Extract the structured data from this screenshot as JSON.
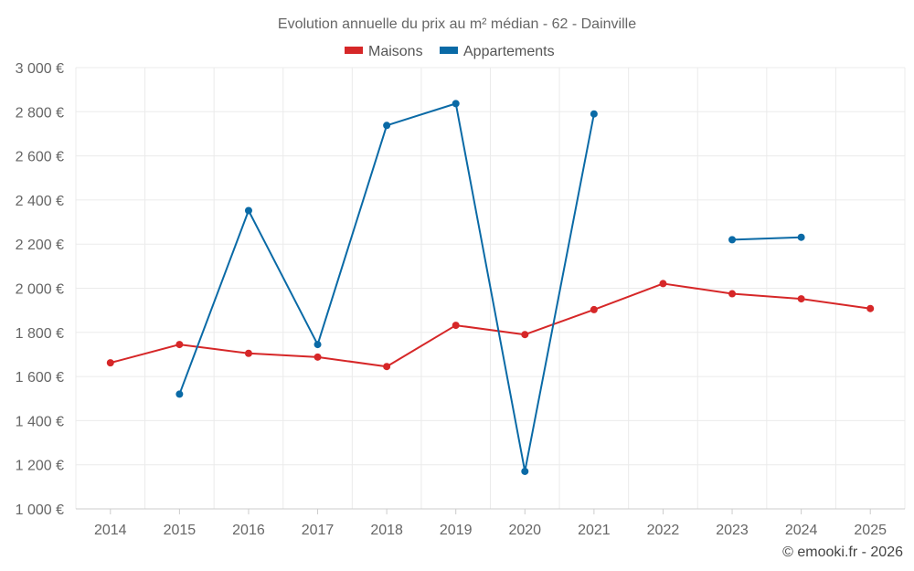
{
  "chart_data": {
    "type": "line",
    "title": "Evolution annuelle du prix au m² médian - 62 - Dainville",
    "categories": [
      "2014",
      "2015",
      "2016",
      "2017",
      "2018",
      "2019",
      "2020",
      "2021",
      "2022",
      "2023",
      "2024",
      "2025"
    ],
    "series": [
      {
        "name": "Maisons",
        "color": "#d62728",
        "values": [
          1662,
          1745,
          1705,
          1688,
          1645,
          1832,
          1790,
          1903,
          2021,
          1975,
          1952,
          1908
        ]
      },
      {
        "name": "Appartements",
        "color": "#0a6aa6",
        "values": [
          null,
          1520,
          2352,
          1745,
          2738,
          2837,
          1170,
          2790,
          null,
          2220,
          2231,
          null
        ]
      }
    ],
    "ylim": [
      1000,
      3000
    ],
    "yticks": [
      {
        "value": 1000,
        "label": "1 000 €"
      },
      {
        "value": 1200,
        "label": "1 200 €"
      },
      {
        "value": 1400,
        "label": "1 400 €"
      },
      {
        "value": 1600,
        "label": "1 600 €"
      },
      {
        "value": 1800,
        "label": "1 800 €"
      },
      {
        "value": 2000,
        "label": "2 000 €"
      },
      {
        "value": 2200,
        "label": "2 200 €"
      },
      {
        "value": 2400,
        "label": "2 400 €"
      },
      {
        "value": 2600,
        "label": "2 600 €"
      },
      {
        "value": 2800,
        "label": "2 800 €"
      },
      {
        "value": 3000,
        "label": "3 000 €"
      }
    ],
    "grid": true,
    "legend_position": "top-center",
    "xlabel": "",
    "ylabel": ""
  },
  "credit": "© emooki.fr - 2026"
}
